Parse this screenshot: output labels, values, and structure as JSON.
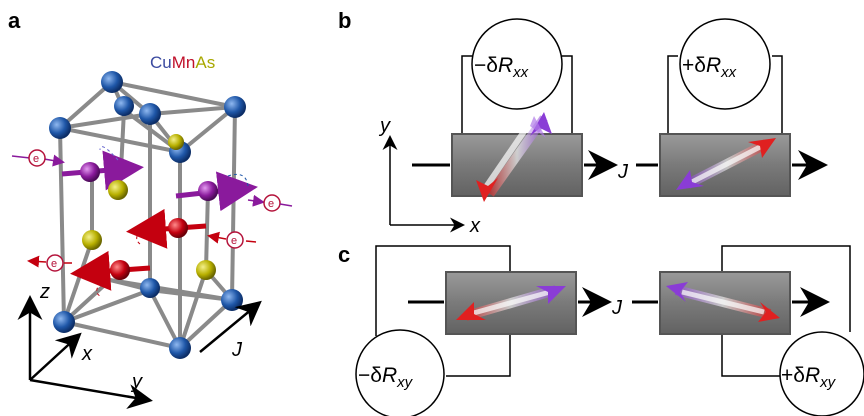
{
  "panels": {
    "a": {
      "label": "a",
      "formula": [
        {
          "text": "Cu",
          "color": "#3b4aa0"
        },
        {
          "text": "Mn",
          "color": "#c0102a"
        },
        {
          "text": "As",
          "color": "#a8a800"
        }
      ],
      "axes": {
        "z": "z",
        "x": "x",
        "y": "y"
      },
      "current": "J",
      "electron": "e"
    },
    "b": {
      "label": "b",
      "axes": {
        "y": "y",
        "x": "x"
      },
      "current": "J",
      "meters": [
        {
          "sign": "−δ",
          "R": "R",
          "sub": "xx"
        },
        {
          "sign": "+δ",
          "R": "R",
          "sub": "xx"
        }
      ]
    },
    "c": {
      "label": "c",
      "current": "J",
      "meters": [
        {
          "sign": "−δ",
          "R": "R",
          "sub": "xy"
        },
        {
          "sign": "+δ",
          "R": "R",
          "sub": "xy"
        }
      ]
    }
  },
  "colors": {
    "cu_atom": "#1f57a8",
    "mn_atom_red": "#c4000f",
    "mn_atom_purple": "#8a1a9c",
    "as_atom": "#b8b000",
    "bar_fill": "#7a7a7a",
    "spin_red": "#e02020",
    "spin_purple": "#8a3cd6"
  }
}
